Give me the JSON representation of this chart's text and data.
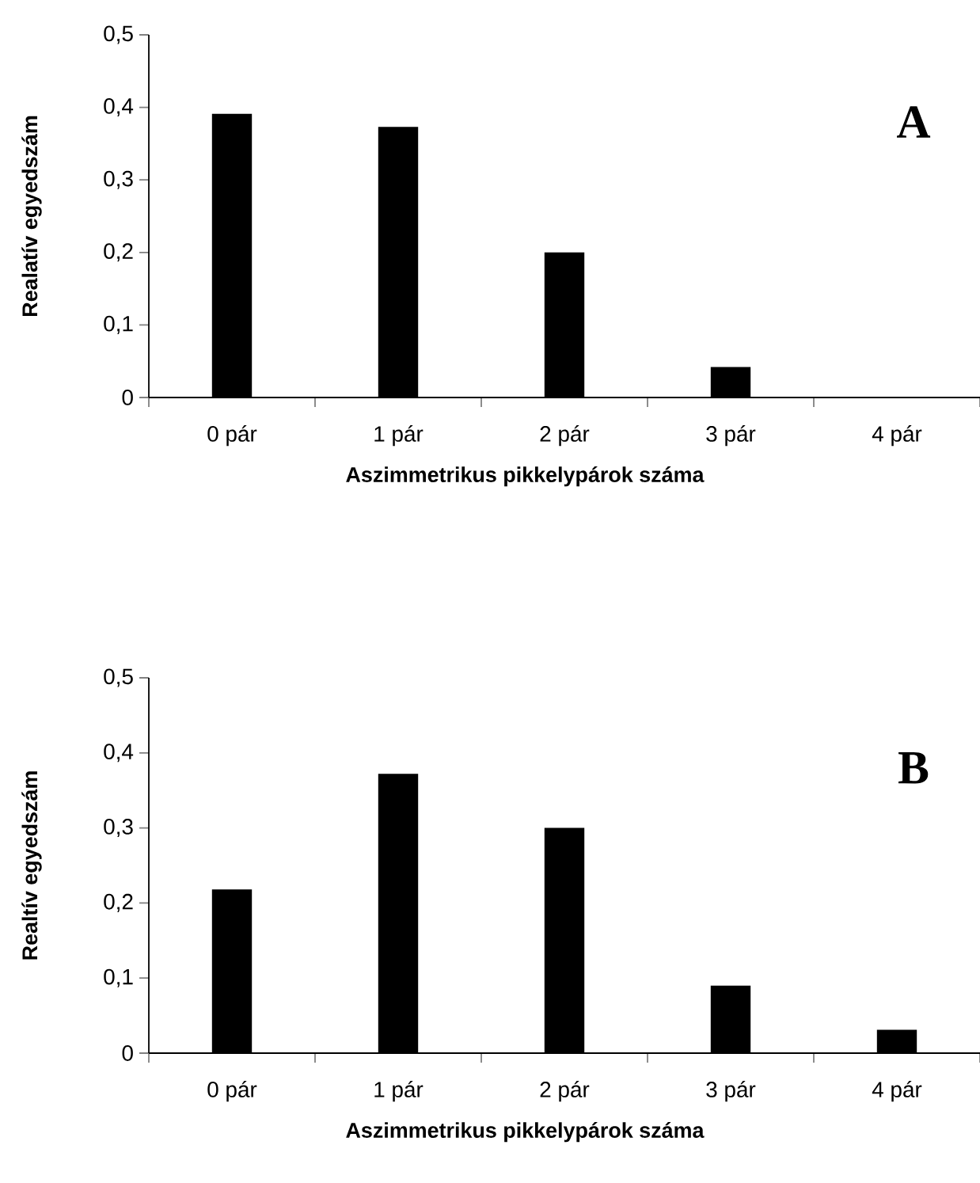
{
  "chart_data": [
    {
      "type": "bar",
      "categories": [
        "0 pár",
        "1 pár",
        "2 pár",
        "3 pár",
        "4 pár"
      ],
      "values": [
        0.391,
        0.373,
        0.2,
        0.042,
        0
      ],
      "color": "#000000",
      "xlabel": "Aszimmetrikus pikkelypárok száma",
      "ylabel": "Realatív egyedszám",
      "ylim": [
        0,
        0.5
      ],
      "yticks": [
        0,
        {
          "value": 0.1,
          "label": "0,1"
        },
        {
          "value": 0.2,
          "label": "0,2"
        },
        {
          "value": 0.3,
          "label": "0,3"
        },
        {
          "value": 0.4,
          "label": "0,4"
        },
        {
          "value": 0.5,
          "label": "0,5"
        }
      ],
      "annotations": [
        "A"
      ]
    },
    {
      "type": "bar",
      "categories": [
        "0 pár",
        "1 pár",
        "2 pár",
        "3 pár",
        "4 pár"
      ],
      "values": [
        0.218,
        0.372,
        0.3,
        0.09,
        0.031
      ],
      "color": "#000000",
      "xlabel": "Aszimmetrikus pikkelypárok száma",
      "ylabel": "Realtív egyedszám",
      "ylim": [
        0,
        0.5
      ],
      "yticks": [
        0,
        {
          "value": 0.1,
          "label": "0,1"
        },
        {
          "value": 0.2,
          "label": "0,2"
        },
        {
          "value": 0.3,
          "label": "0,3"
        },
        {
          "value": 0.4,
          "label": "0,4"
        },
        {
          "value": 0.5,
          "label": "0,5"
        }
      ],
      "annotations": [
        "B"
      ]
    }
  ]
}
